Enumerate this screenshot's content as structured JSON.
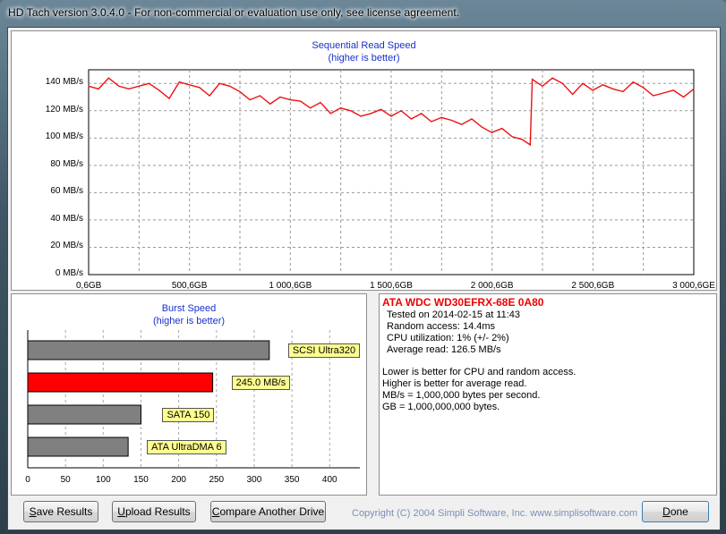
{
  "window": {
    "title": "HD Tach version 3.0.4.0  - For non-commercial or evaluation use only, see license agreement."
  },
  "seq_chart": {
    "title": "Sequential Read Speed",
    "subtitle": "(higher is better)",
    "y_ticks": [
      "140 MB/s",
      "120 MB/s",
      "100 MB/s",
      "80 MB/s",
      "60 MB/s",
      "40 MB/s",
      "20 MB/s",
      "0 MB/s"
    ],
    "x_ticks": [
      "0,6GB",
      "500,6GB",
      "1 000,6GB",
      "1 500,6GB",
      "2 000,6GB",
      "2 500,6GB",
      "3 000,6GE"
    ]
  },
  "burst_chart": {
    "title": "Burst Speed",
    "subtitle": "(higher is better)",
    "x_ticks": [
      "0",
      "50",
      "100",
      "150",
      "200",
      "250",
      "300",
      "350",
      "400"
    ],
    "bars": [
      {
        "label": "SCSI Ultra320",
        "value": 320,
        "color": "#808080"
      },
      {
        "label": "245.0 MB/s",
        "value": 245,
        "color": "#ff0000"
      },
      {
        "label": "SATA 150",
        "value": 150,
        "color": "#808080"
      },
      {
        "label": "ATA UltraDMA 6",
        "value": 133,
        "color": "#808080"
      }
    ]
  },
  "info": {
    "drive": "ATA WDC WD30EFRX-68E 0A80",
    "tested": "Tested on 2014-02-15 at 11:43",
    "random_access": "Random access: 14.4ms",
    "cpu": "CPU utilization: 1% (+/- 2%)",
    "average_read": "Average read: 126.5 MB/s",
    "note1": "Lower is better for CPU and random access.",
    "note2": "Higher is better for average read.",
    "note3": "MB/s = 1,000,000 bytes per second.",
    "note4": "GB = 1,000,000,000 bytes."
  },
  "buttons": {
    "save": {
      "first": "S",
      "rest": "ave Results"
    },
    "upload": {
      "first": "U",
      "rest": "pload Results"
    },
    "compare": {
      "first": "C",
      "rest": "ompare Another Drive"
    },
    "done": {
      "first": "D",
      "rest": "one"
    }
  },
  "copyright": "Copyright (C) 2004 Simpli Software, Inc. www.simplisoftware.com",
  "chart_data": [
    {
      "type": "line",
      "title": "Sequential Read Speed",
      "subtitle": "(higher is better)",
      "xlabel": "",
      "ylabel": "",
      "xunit": "GB",
      "yunit": "MB/s",
      "xlim": [
        0.6,
        3000.6
      ],
      "ylim": [
        0,
        150
      ],
      "grid": true,
      "series": [
        {
          "color": "#ee1111",
          "x": [
            0.6,
            50,
            100,
            150,
            200,
            250,
            300,
            350,
            400,
            450,
            500,
            550,
            600,
            650,
            700,
            750,
            800,
            850,
            900,
            950,
            1000,
            1050,
            1100,
            1150,
            1200,
            1250,
            1300,
            1350,
            1400,
            1450,
            1500,
            1550,
            1600,
            1650,
            1700,
            1750,
            1800,
            1850,
            1900,
            1950,
            2000,
            2050,
            2100,
            2150,
            2190,
            2200,
            2250,
            2300,
            2350,
            2400,
            2450,
            2500,
            2550,
            2600,
            2650,
            2700,
            2750,
            2800,
            2850,
            2900,
            2950,
            3000.6
          ],
          "y": [
            138,
            136,
            144,
            138,
            136,
            138,
            140,
            135,
            129,
            141,
            139,
            137,
            131,
            140,
            138,
            134,
            128,
            131,
            125,
            130,
            128,
            127,
            122,
            126,
            118,
            122,
            120,
            116,
            118,
            121,
            116,
            120,
            114,
            118,
            112,
            115,
            113,
            110,
            114,
            108,
            104,
            107,
            101,
            99,
            95,
            143,
            138,
            144,
            140,
            132,
            140,
            135,
            139,
            136,
            134,
            141,
            137,
            131,
            133,
            135,
            130,
            136
          ]
        }
      ]
    },
    {
      "type": "bar",
      "title": "Burst Speed",
      "subtitle": "(higher is better)",
      "orientation": "horizontal",
      "categories": [
        "SCSI Ultra320",
        "245.0 MB/s",
        "SATA 150",
        "ATA UltraDMA 6"
      ],
      "values": [
        320,
        245,
        150,
        133
      ],
      "xlim": [
        0,
        440
      ],
      "grid": true
    }
  ]
}
